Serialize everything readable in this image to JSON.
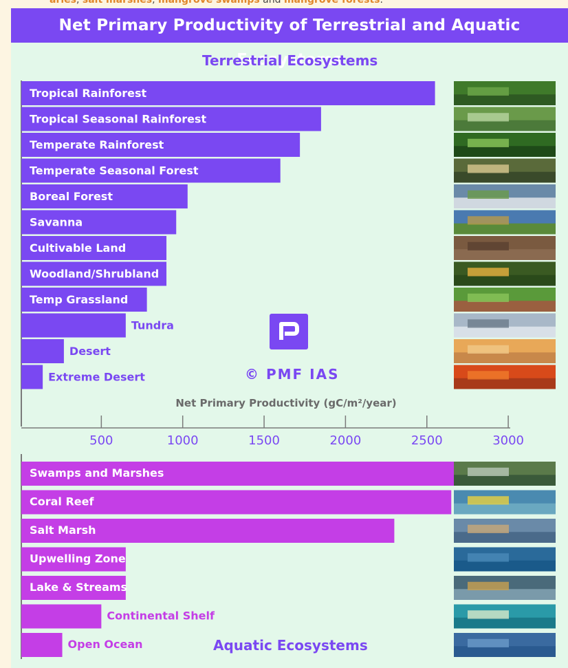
{
  "top_snippet": {
    "parts": [
      {
        "text": "aries",
        "style": "hl"
      },
      {
        "text": ", ",
        "style": "pl"
      },
      {
        "text": "salt marshes",
        "style": "hl"
      },
      {
        "text": ", ",
        "style": "pl"
      },
      {
        "text": "mangrove swamps",
        "style": "hl"
      },
      {
        "text": " and ",
        "style": "pl"
      },
      {
        "text": "mangrove forests",
        "style": "hl"
      },
      {
        "text": ".",
        "style": "pl"
      }
    ]
  },
  "header": {
    "title": "Net Primary Productivity of Terrestrial and Aquatic Ecosystems"
  },
  "sections": {
    "terrestrial_title": "Terrestrial Ecosystems",
    "aquatic_title": "Aquatic Ecosystems"
  },
  "watermark": {
    "text": "© PMF IAS",
    "logo_letter": "P"
  },
  "colors": {
    "terrestrial_bar": "#7a48f2",
    "aquatic_bar": "#c43ee6",
    "background": "#e3f8ea",
    "title_bar": "#7a48f2"
  },
  "chart_data": {
    "type": "bar",
    "orientation": "horizontal",
    "xlabel": "Net Primary Productivity (gC/m²/year)",
    "xticks": [
      500,
      1000,
      1500,
      2000,
      2500,
      3000
    ],
    "xlim": [
      20,
      3000
    ],
    "series": [
      {
        "name": "Terrestrial Ecosystems",
        "categories": [
          "Tropical Rainforest",
          "Tropical Seasonal Rainforest",
          "Temperate Rainforest",
          "Temperate Seasonal Forest",
          "Boreal Forest",
          "Savanna",
          "Cultivable Land",
          "Woodland/Shrubland",
          "Temp Grassland",
          "Tundra",
          "Desert",
          "Extreme Desert"
        ],
        "values": [
          2550,
          1850,
          1720,
          1600,
          1030,
          960,
          900,
          900,
          780,
          650,
          270,
          140
        ]
      },
      {
        "name": "Aquatic Ecosystems",
        "categories": [
          "Swamps and Marshes",
          "Coral Reef",
          "Salt Marsh",
          "Upwelling Zone",
          "Lake & Streams",
          "Continental Shelf",
          "Open Ocean"
        ],
        "values": [
          2680,
          2650,
          2300,
          650,
          650,
          500,
          260
        ]
      }
    ],
    "images": [
      "rainforest-photo",
      "seasonal-rainforest-photo",
      "temperate-rainforest-photo",
      "temperate-forest-photo",
      "boreal-forest-photo",
      "savanna-photo",
      "cultivated-field-photo",
      "woodland-photo",
      "grassland-photo",
      "tundra-photo",
      "desert-photo",
      "extreme-desert-photo",
      "swamp-photo",
      "coral-reef-photo",
      "salt-marsh-photo",
      "upwelling-photo",
      "lake-photo",
      "continental-shelf-photo",
      "open-ocean-photo"
    ]
  }
}
